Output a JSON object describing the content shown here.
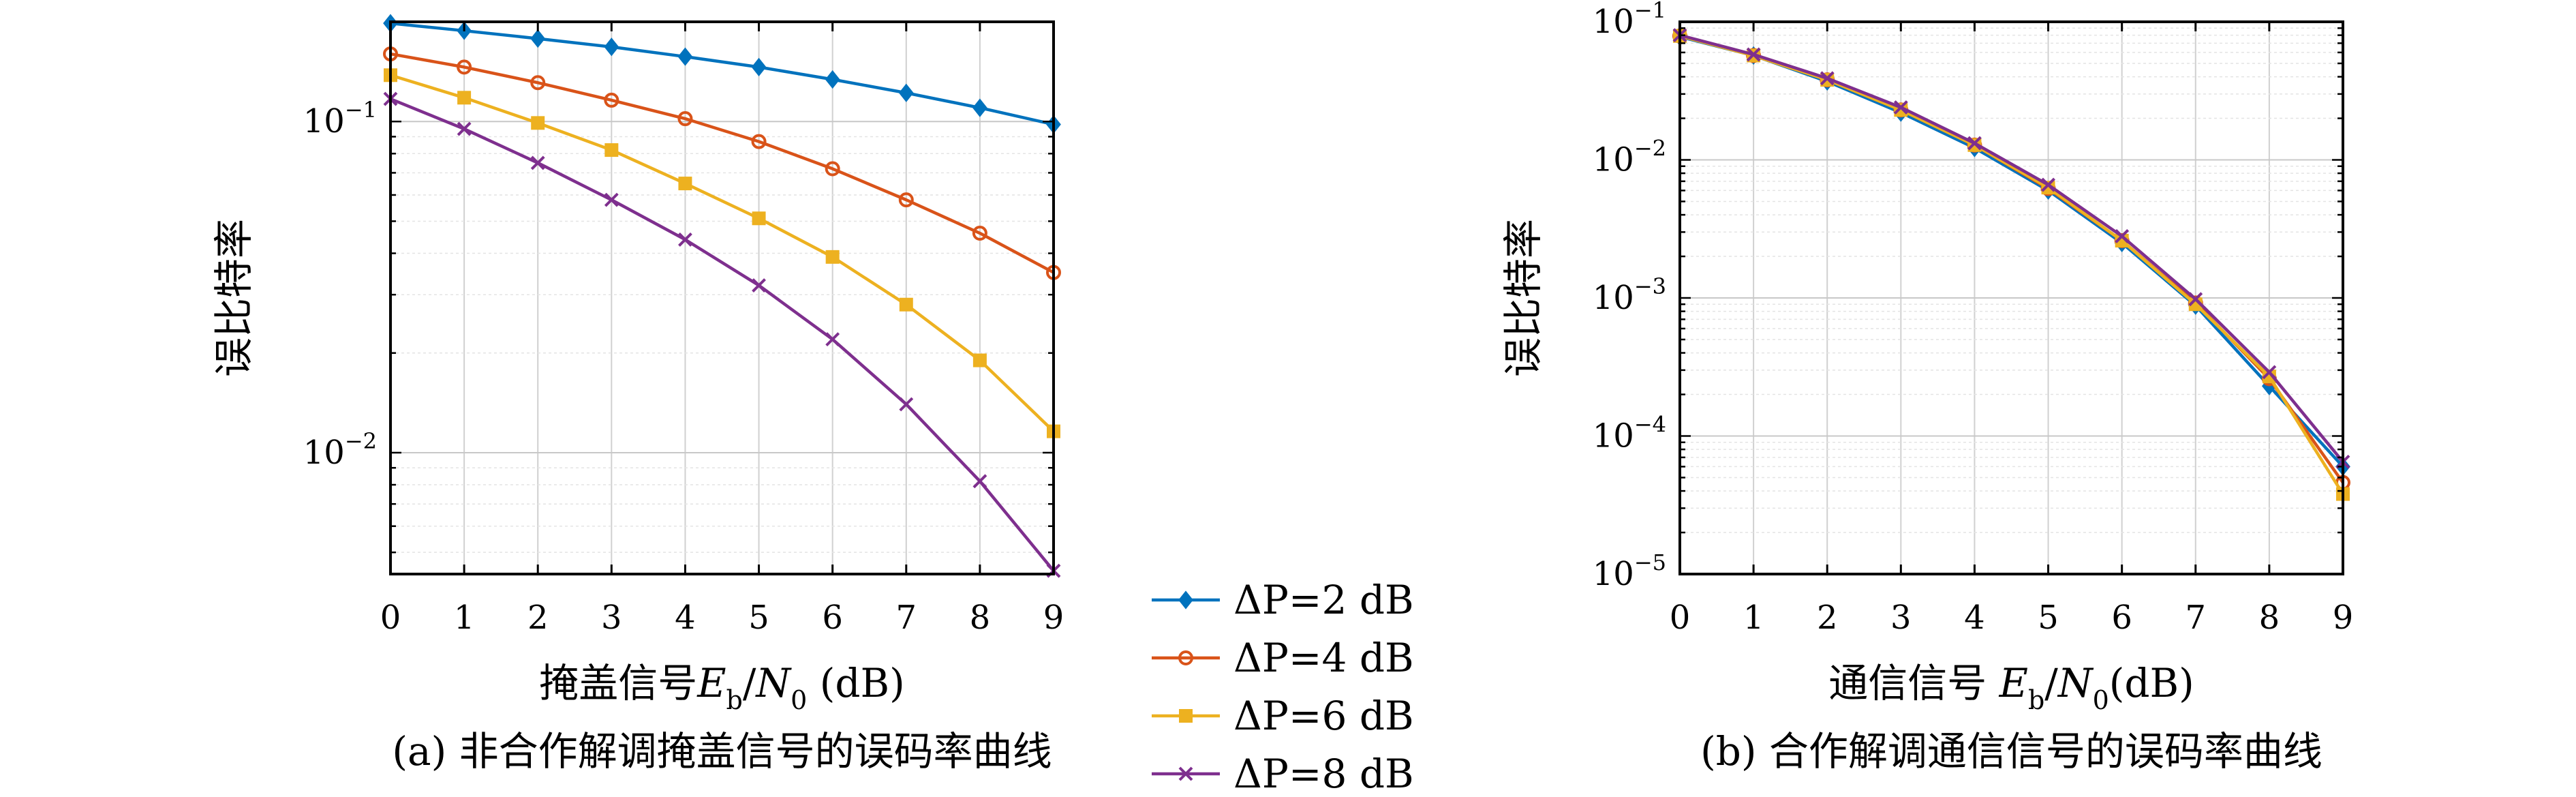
{
  "chart_data": [
    {
      "type": "line",
      "xlabel": "掩盖信号E_b/N_0 (dB)",
      "ylabel": "误比特率",
      "caption": "(a) 非合作解调掩盖信号的误码率曲线",
      "yscale": "log",
      "xlim": [
        0,
        9
      ],
      "ylim": [
        0.0043,
        0.2
      ],
      "x": [
        0,
        1,
        2,
        3,
        4,
        5,
        6,
        7,
        8,
        9
      ],
      "xticks": [
        "0",
        "1",
        "2",
        "3",
        "4",
        "5",
        "6",
        "7",
        "8",
        "9"
      ],
      "yticks": [
        {
          "base": "10",
          "exp": "−1",
          "value": 0.1
        },
        {
          "base": "10",
          "exp": "−2",
          "value": 0.01
        }
      ],
      "grid": true,
      "series": [
        {
          "name": "ΔP=2 dB",
          "color": "#0072BD",
          "marker": "diamond",
          "values": [
            0.198,
            0.188,
            0.178,
            0.168,
            0.157,
            0.146,
            0.134,
            0.122,
            0.11,
            0.098
          ]
        },
        {
          "name": "ΔP=4 dB",
          "color": "#D95319",
          "marker": "circle",
          "values": [
            0.16,
            0.146,
            0.131,
            0.116,
            0.102,
            0.087,
            0.072,
            0.058,
            0.046,
            0.035
          ]
        },
        {
          "name": "ΔP=6 dB",
          "color": "#EDB120",
          "marker": "square",
          "values": [
            0.138,
            0.118,
            0.099,
            0.082,
            0.065,
            0.051,
            0.039,
            0.028,
            0.019,
            0.0116
          ]
        },
        {
          "name": "ΔP=8 dB",
          "color": "#7E2F8E",
          "marker": "x",
          "values": [
            0.117,
            0.095,
            0.075,
            0.058,
            0.044,
            0.032,
            0.022,
            0.014,
            0.0082,
            0.0044
          ]
        }
      ]
    },
    {
      "type": "line",
      "xlabel": "通信信号 E_b/N_0(dB)",
      "ylabel": "误比特率",
      "caption": "(b) 合作解调通信信号的误码率曲线",
      "yscale": "log",
      "xlim": [
        0,
        9
      ],
      "ylim": [
        1e-05,
        0.1
      ],
      "x": [
        0,
        1,
        2,
        3,
        4,
        5,
        6,
        7,
        8,
        9
      ],
      "xticks": [
        "0",
        "1",
        "2",
        "3",
        "4",
        "5",
        "6",
        "7",
        "8",
        "9"
      ],
      "yticks": [
        {
          "base": "10",
          "exp": "−1",
          "value": 0.1
        },
        {
          "base": "10",
          "exp": "−2",
          "value": 0.01
        },
        {
          "base": "10",
          "exp": "−3",
          "value": 0.001
        },
        {
          "base": "10",
          "exp": "−4",
          "value": 0.0001
        },
        {
          "base": "10",
          "exp": "−5",
          "value": 1e-05
        }
      ],
      "grid": true,
      "series": [
        {
          "name": "ΔP=2 dB",
          "color": "#0072BD",
          "marker": "diamond",
          "values": [
            0.078,
            0.057,
            0.037,
            0.022,
            0.0122,
            0.006,
            0.0025,
            0.00088,
            0.00023,
            6e-05
          ]
        },
        {
          "name": "ΔP=4 dB",
          "color": "#D95319",
          "marker": "circle",
          "values": [
            0.079,
            0.057,
            0.038,
            0.023,
            0.0128,
            0.0062,
            0.0026,
            0.00092,
            0.00026,
            4.6e-05
          ]
        },
        {
          "name": "ΔP=6 dB",
          "color": "#EDB120",
          "marker": "square",
          "values": [
            0.079,
            0.057,
            0.038,
            0.023,
            0.0128,
            0.0063,
            0.0026,
            0.0009,
            0.00027,
            3.8e-05
          ]
        },
        {
          "name": "ΔP=8 dB",
          "color": "#7E2F8E",
          "marker": "x",
          "values": [
            0.08,
            0.058,
            0.039,
            0.024,
            0.0132,
            0.0066,
            0.0028,
            0.00098,
            0.00029,
            6.5e-05
          ]
        }
      ]
    }
  ],
  "legend": {
    "placement": "between-panels-bottom",
    "entries": [
      "ΔP=2 dB",
      "ΔP=4 dB",
      "ΔP=6 dB",
      "ΔP=8 dB"
    ]
  }
}
